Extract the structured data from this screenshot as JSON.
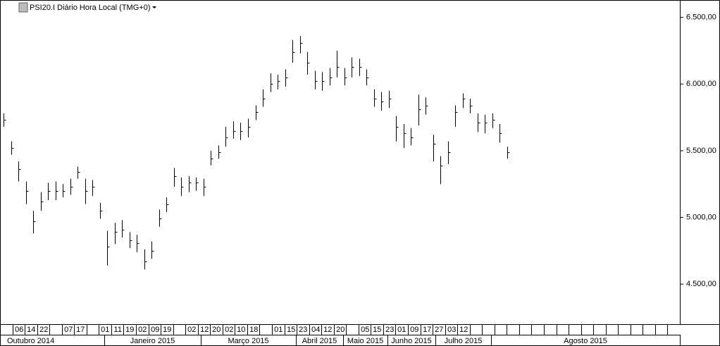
{
  "chart_data": {
    "type": "ohlc",
    "title": "PSI20.I Diário Hora Local (TMG+0)",
    "ylim": [
      4200,
      6630
    ],
    "yticks": [
      {
        "value": 4500,
        "label": "4.500,00"
      },
      {
        "value": 5000,
        "label": "5.000,00"
      },
      {
        "value": 5500,
        "label": "5.500,00"
      },
      {
        "value": 6000,
        "label": "6.000,00"
      },
      {
        "value": 6500,
        "label": "6.500,00"
      }
    ],
    "color": "#000000",
    "series": [
      {
        "name": "high",
        "values": [
          5780,
          5570,
          5420,
          5270,
          5050,
          5190,
          5260,
          5270,
          5250,
          5290,
          5380,
          5290,
          5280,
          5110,
          4900,
          4960,
          4980,
          4890,
          4870,
          4760,
          4820,
          5060,
          5150,
          5370,
          5300,
          5310,
          5300,
          5290,
          5500,
          5540,
          5680,
          5720,
          5710,
          5740,
          5840,
          5960,
          6080,
          6070,
          6110,
          6330,
          6360,
          6240,
          6100,
          6090,
          6120,
          6250,
          6120,
          6200,
          6190,
          6110,
          5960,
          5940,
          5950,
          5760,
          5700,
          5670,
          5920,
          5900,
          5620,
          5460,
          5570,
          5840,
          5930,
          5890,
          5780,
          5770,
          5780,
          5700,
          5530
        ]
      },
      {
        "name": "low",
        "values": [
          5680,
          5470,
          5270,
          5100,
          4880,
          5050,
          5130,
          5130,
          5150,
          5170,
          5290,
          5100,
          5160,
          4990,
          4640,
          4800,
          4850,
          4770,
          4740,
          4610,
          4690,
          4930,
          5040,
          5230,
          5160,
          5190,
          5200,
          5160,
          5390,
          5440,
          5530,
          5590,
          5580,
          5600,
          5730,
          5830,
          5940,
          5960,
          5980,
          6160,
          6230,
          6070,
          5960,
          5950,
          5990,
          6050,
          5990,
          6050,
          6060,
          5990,
          5830,
          5800,
          5820,
          5570,
          5520,
          5540,
          5690,
          5770,
          5420,
          5250,
          5400,
          5680,
          5820,
          5780,
          5640,
          5630,
          5670,
          5560,
          5440
        ]
      },
      {
        "name": "close",
        "values": [
          5730,
          5520,
          5360,
          5200,
          4970,
          5120,
          5200,
          5200,
          5200,
          5230,
          5340,
          5200,
          5230,
          5050,
          4780,
          4890,
          4910,
          4830,
          4810,
          4670,
          4750,
          4990,
          5100,
          5310,
          5230,
          5260,
          5260,
          5230,
          5440,
          5490,
          5600,
          5650,
          5650,
          5680,
          5790,
          5890,
          6000,
          6020,
          6050,
          6240,
          6310,
          6160,
          6020,
          6020,
          6050,
          6130,
          6050,
          6130,
          6130,
          6050,
          5890,
          5870,
          5890,
          5680,
          5630,
          5600,
          5810,
          5840,
          5550,
          5390,
          5490,
          5790,
          5890,
          5840,
          5710,
          5710,
          5730,
          5630,
          5490
        ]
      }
    ],
    "day_labels": [
      null,
      "06",
      "14",
      "22",
      null,
      "07",
      "17",
      null,
      "01",
      "11",
      "19",
      "02",
      "09",
      "19",
      null,
      "02",
      "12",
      "20",
      "02",
      "10",
      "18",
      null,
      "01",
      "15",
      "23",
      "04",
      "12",
      "20",
      null,
      "05",
      "15",
      "23",
      "01",
      "09",
      "17",
      "27",
      "03",
      "12",
      null,
      null,
      null,
      null,
      null,
      null,
      null,
      null,
      null,
      null,
      null,
      null,
      null,
      null,
      null,
      null,
      null
    ],
    "month_labels": [
      "Outubro 2014",
      "Janeiro 2015",
      "Março 2015",
      "Abril 2015",
      "Maio 2015",
      "Junho 2015",
      "Julho 2015",
      "Agosto 2015"
    ]
  }
}
